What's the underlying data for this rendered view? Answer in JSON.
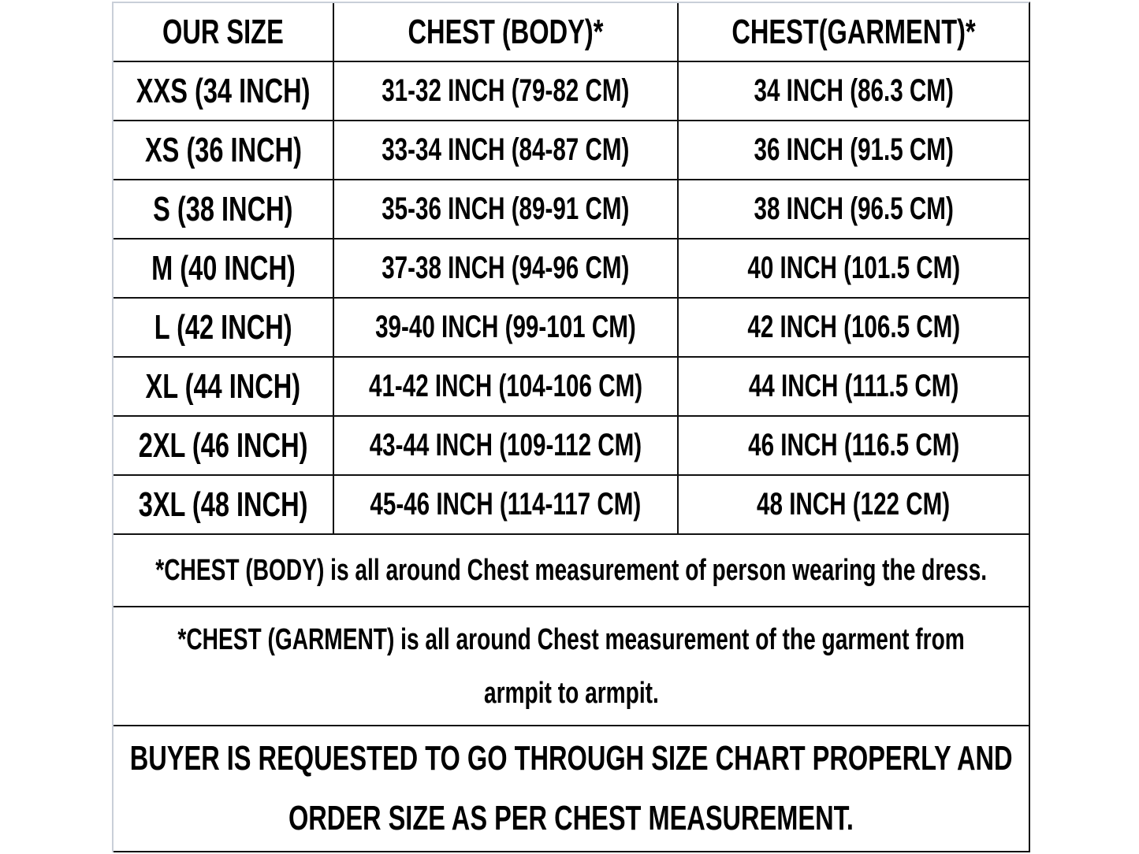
{
  "headers": [
    "OUR SIZE",
    "CHEST (BODY)*",
    "CHEST(GARMENT)*"
  ],
  "rows": [
    [
      "XXS (34 INCH)",
      "31-32 INCH (79-82 CM)",
      "34 INCH (86.3 CM)"
    ],
    [
      "XS (36 INCH)",
      "33-34 INCH (84-87 CM)",
      "36 INCH (91.5 CM)"
    ],
    [
      "S (38 INCH)",
      "35-36 INCH (89-91 CM)",
      "38 INCH (96.5 CM)"
    ],
    [
      "M (40 INCH)",
      "37-38 INCH (94-96 CM)",
      "40 INCH (101.5 CM)"
    ],
    [
      "L (42 INCH)",
      "39-40 INCH (99-101 CM)",
      "42 INCH (106.5 CM)"
    ],
    [
      "XL (44 INCH)",
      "41-42 INCH (104-106 CM)",
      "44 INCH (111.5 CM)"
    ],
    [
      "2XL (46 INCH)",
      "43-44 INCH (109-112 CM)",
      "46 INCH (116.5 CM)"
    ],
    [
      "3XL (48 INCH)",
      "45-46 INCH (114-117 CM)",
      "48 INCH (122 CM)"
    ]
  ],
  "notes": {
    "body": "*CHEST (BODY) is all around Chest measurement of person wearing the dress.",
    "garment_line1": "*CHEST (GARMENT) is all around Chest measurement of the garment from",
    "garment_line2": "armpit to armpit.",
    "buyer_line1": "BUYER IS REQUESTED TO GO THROUGH SIZE CHART PROPERLY AND",
    "buyer_line2": "ORDER SIZE AS PER CHEST MEASUREMENT."
  }
}
